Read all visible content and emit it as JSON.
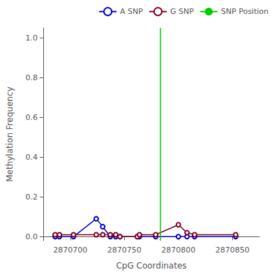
{
  "chart_data": {
    "type": "line",
    "xlabel": "CpG Coordinates",
    "ylabel": "Methylation Frequency",
    "xlim": [
      2870675,
      2870875
    ],
    "ylim": [
      -0.02,
      1.05
    ],
    "xticks": [
      2870700,
      2870750,
      2870800,
      2870850
    ],
    "yticks": [
      {
        "value": 0,
        "label": "0.0"
      },
      0.2,
      0.4,
      0.6,
      0.8,
      {
        "value": 1,
        "label": "1.0"
      }
    ],
    "grid": false,
    "legend": "upper right",
    "series": [
      {
        "name": "A SNP",
        "type": "line",
        "color": "#0000cc",
        "marker": "open circle",
        "x": [
          2870686,
          2870690,
          2870703,
          2870724,
          2870730,
          2870737,
          2870742,
          2870746,
          2870762,
          2870764,
          2870779,
          2870800,
          2870808,
          2870815,
          2870853
        ],
        "values": [
          0.0,
          0.0,
          0.0,
          0.09,
          0.05,
          0.0,
          0.0,
          0.0,
          0.0,
          0.0,
          0.0,
          0.0,
          0.0,
          0.0,
          0.0
        ]
      },
      {
        "name": "G SNP",
        "type": "line",
        "color": "#800020",
        "marker": "open circle",
        "x": [
          2870686,
          2870690,
          2870703,
          2870724,
          2870730,
          2870737,
          2870742,
          2870746,
          2870762,
          2870764,
          2870779,
          2870800,
          2870808,
          2870815,
          2870853
        ],
        "values": [
          0.01,
          0.01,
          0.01,
          0.01,
          0.01,
          0.01,
          0.01,
          0.0,
          0.0,
          0.01,
          0.01,
          0.06,
          0.02,
          0.01,
          0.01
        ]
      },
      {
        "name": "SNP Position",
        "type": "vline",
        "color": "#00cc00",
        "x": 2870783
      }
    ]
  }
}
